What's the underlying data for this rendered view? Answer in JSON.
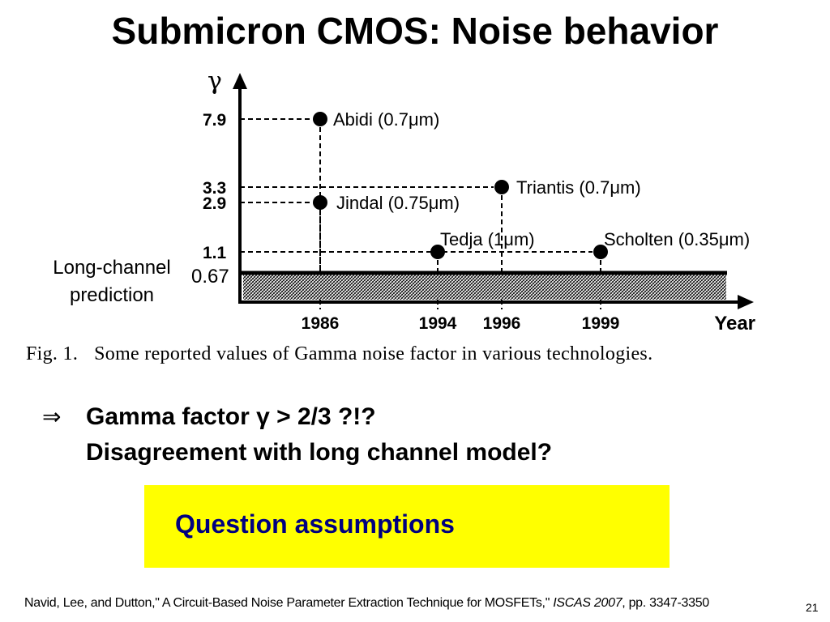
{
  "slide": {
    "title": "Submicron CMOS: Noise behavior",
    "caption_fig": "Fig. 1.",
    "caption_text": "Some reported values of Gamma noise factor in various technologies.",
    "bullet_arrow": "⇒",
    "bullet_line1": "Gamma factor γ > 2/3 ?!?",
    "bullet_line2": "Disagreement with long channel model?",
    "highlight": "Question assumptions",
    "reference_pre": "Navid, Lee, and Dutton,\" A Circuit-Based Noise Parameter Extraction Technique for MOSFETs,\" ",
    "reference_venue": "ISCAS 2007",
    "reference_post": ", pp. 3347-3350",
    "page_number": "21",
    "colors": {
      "highlight_bg": "#ffff00",
      "highlight_text": "#000080",
      "ink": "#000000"
    }
  },
  "chart_data": {
    "type": "scatter",
    "title": "",
    "xlabel": "Year",
    "ylabel": "γ",
    "x_ticks": [
      "1986",
      "1994",
      "1996",
      "1999"
    ],
    "y_ticks": [
      "7.9",
      "3.3",
      "2.9",
      "1.1",
      "0.67"
    ],
    "points": [
      {
        "label": "Abidi (0.7μm)",
        "x": 1986,
        "y": 7.9
      },
      {
        "label": "Jindal (0.75μm)",
        "x": 1986,
        "y": 2.9
      },
      {
        "label": "Triantis (0.7μm)",
        "x": 1996,
        "y": 3.3
      },
      {
        "label": "Tedja (1μm)",
        "x": 1994,
        "y": 1.1
      },
      {
        "label": "Scholten (0.35μm)",
        "x": 1999,
        "y": 1.1
      }
    ],
    "reference_line": {
      "y": 0.67,
      "label_line1": "Long-channel",
      "label_line2": "prediction"
    },
    "y_scale": "nonlinear",
    "grid": false
  }
}
